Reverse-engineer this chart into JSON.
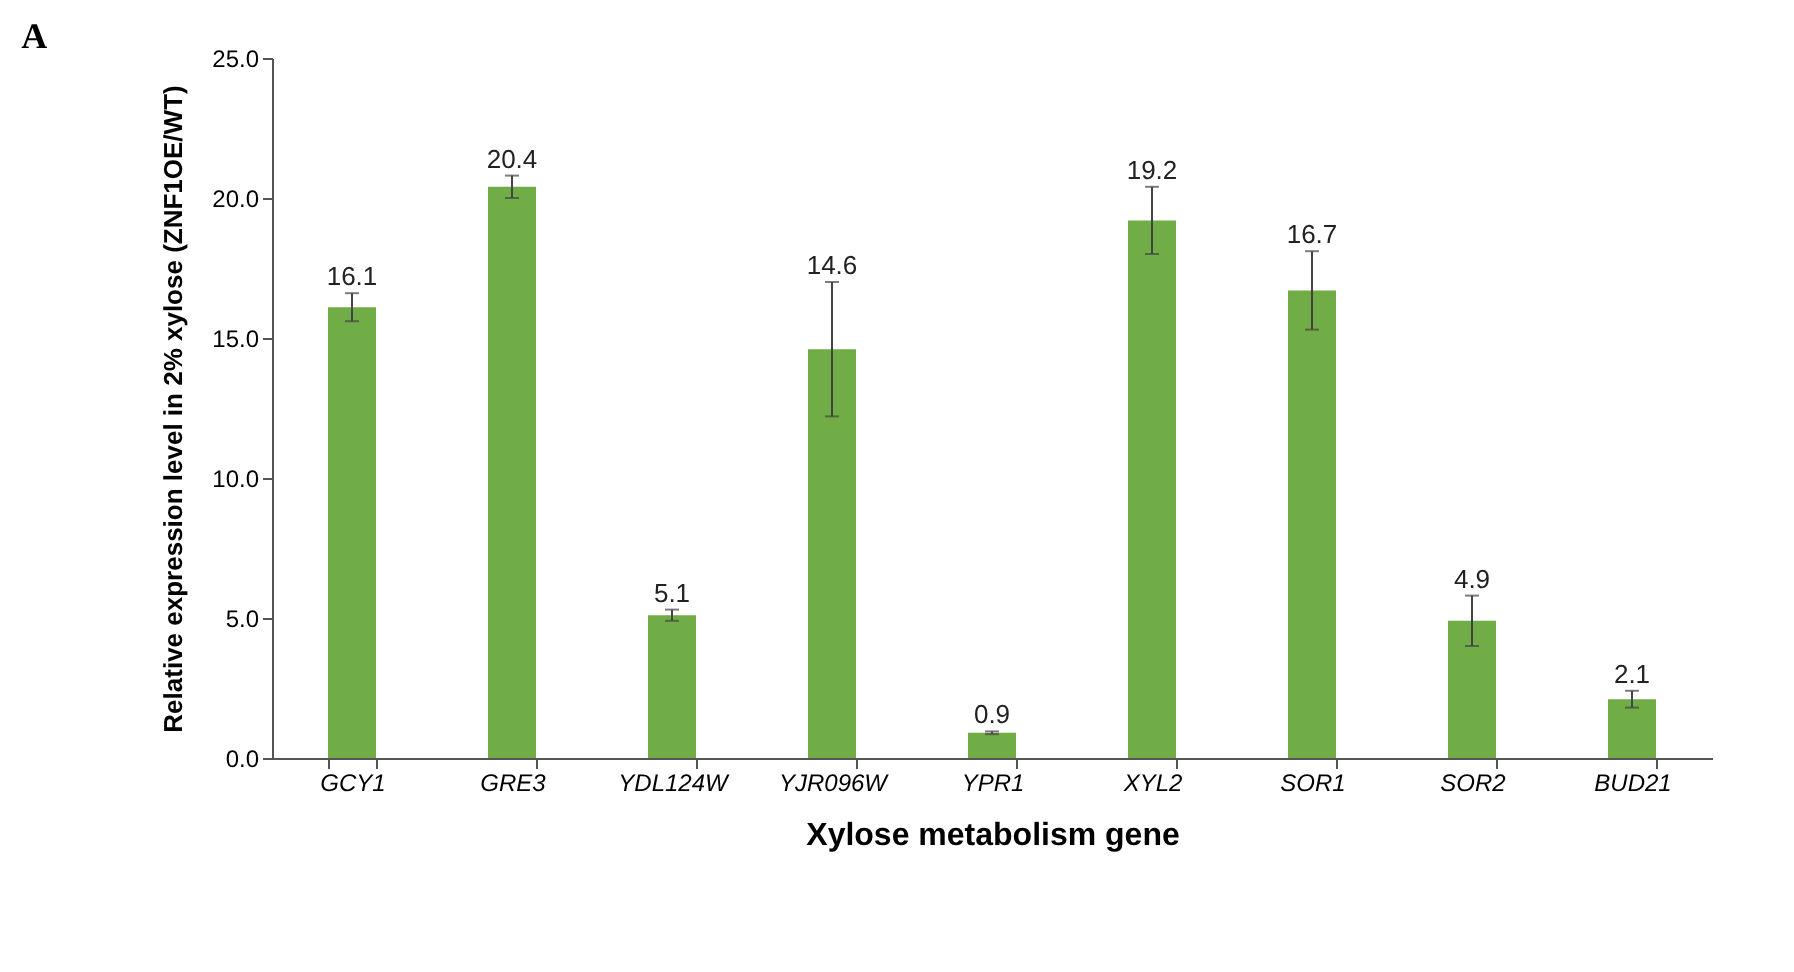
{
  "chart_data": {
    "type": "bar",
    "xlabel": "Xylose metabolism gene",
    "ylabel": "Relative expression level in 2% xylose (ZNF1OE/WT)",
    "annotations": [
      "A"
    ],
    "categories": [
      "GCY1",
      "GRE3",
      "YDL124W",
      "YJR096W",
      "YPR1",
      "XYL2",
      "SOR1",
      "SOR2",
      "BUD21"
    ],
    "values": [
      16.1,
      20.4,
      5.1,
      14.6,
      0.9,
      19.2,
      16.7,
      4.9,
      2.1
    ],
    "errors": [
      0.5,
      0.4,
      0.2,
      2.4,
      0.05,
      1.2,
      1.4,
      0.9,
      0.3
    ],
    "color": "#70ad47",
    "data_labels": true,
    "grid": false,
    "ylim": [
      0,
      25
    ],
    "yticks": [
      {
        "value": 0,
        "label": "0.0"
      },
      {
        "value": 5,
        "label": "5.0"
      },
      {
        "value": 10,
        "label": "10.0"
      },
      {
        "value": 15,
        "label": "15.0"
      },
      {
        "value": 20,
        "label": "20.0"
      },
      {
        "value": 25,
        "label": "25.0"
      }
    ]
  }
}
